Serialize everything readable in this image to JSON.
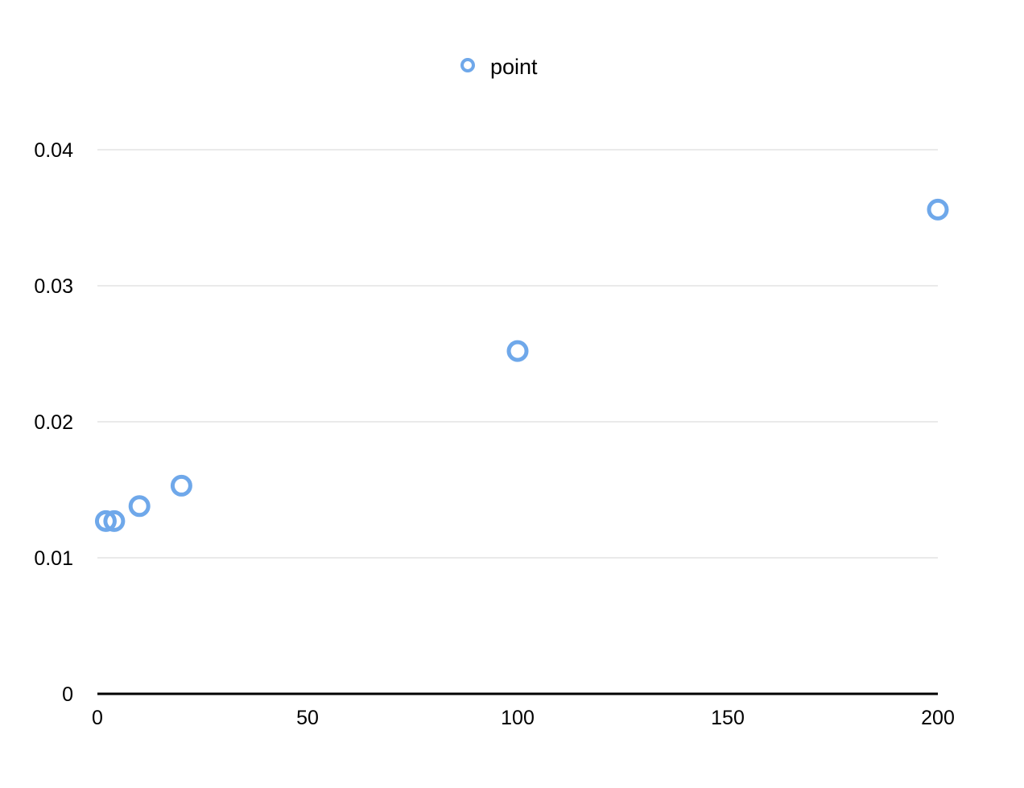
{
  "chart_data": {
    "type": "scatter",
    "title": "",
    "xlabel": "",
    "ylabel": "",
    "xlim": [
      0,
      200
    ],
    "ylim": [
      0,
      0.04
    ],
    "x_ticks": [
      0,
      50,
      100,
      150,
      200
    ],
    "x_tick_labels": [
      "0",
      "50",
      "100",
      "150",
      "200"
    ],
    "y_ticks": [
      0,
      0.01,
      0.02,
      0.03,
      0.04
    ],
    "y_tick_labels": [
      "0",
      "0.01",
      "0.02",
      "0.03",
      "0.04"
    ],
    "grid": "horizontal",
    "legend_position": "top-center",
    "series": [
      {
        "name": "point",
        "color": "#6fa8ea",
        "marker": "hollow-circle",
        "points": [
          {
            "x": 2,
            "y": 0.0127
          },
          {
            "x": 4,
            "y": 0.0127
          },
          {
            "x": 10,
            "y": 0.0138
          },
          {
            "x": 20,
            "y": 0.0153
          },
          {
            "x": 100,
            "y": 0.0252
          },
          {
            "x": 200,
            "y": 0.0356
          }
        ]
      }
    ]
  }
}
